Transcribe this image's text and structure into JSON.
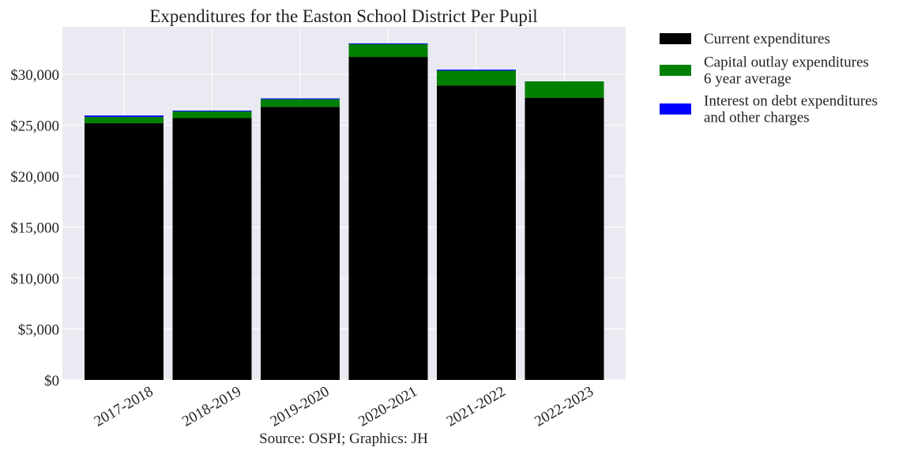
{
  "chart_data": {
    "type": "bar",
    "stacked": true,
    "title": "Expenditures for the Easton School District Per Pupil",
    "caption": "Source: OSPI; Graphics: JH",
    "categories": [
      "2017-2018",
      "2018-2019",
      "2019-2020",
      "2020-2021",
      "2021-2022",
      "2022-2023"
    ],
    "series": [
      {
        "name": "Current expenditures",
        "color": "#000000",
        "values": [
          25200,
          25700,
          26800,
          31700,
          28900,
          27700
        ]
      },
      {
        "name": "Capital outlay expenditures\n6 year average",
        "color": "#008000",
        "values": [
          600,
          650,
          750,
          1250,
          1450,
          1600
        ]
      },
      {
        "name": "Interest on debt expenditures\nand other charges",
        "color": "#0000ff",
        "values": [
          150,
          80,
          80,
          80,
          100,
          0
        ]
      }
    ],
    "yticks": [
      0,
      5000,
      10000,
      15000,
      20000,
      25000,
      30000
    ],
    "ytick_labels": [
      "$0",
      "$5,000",
      "$10,000",
      "$15,000",
      "$20,000",
      "$25,000",
      "$30,000"
    ],
    "ylim": [
      0,
      34650
    ],
    "grid": true,
    "legend": "outside-top-right"
  }
}
